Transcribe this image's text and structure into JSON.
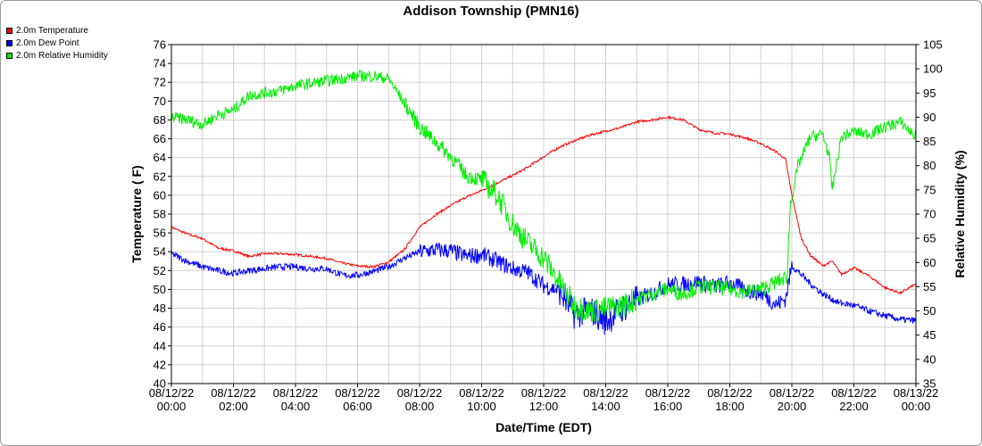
{
  "chart_data": {
    "type": "line",
    "title": "Addison Township (PMN16)",
    "xlabel": "Date/Time (EDT)",
    "ylabel": "Temperature ( F)",
    "y2label": "Relative Humidity (%)",
    "ylim": [
      40,
      76
    ],
    "y2lim": [
      35,
      105
    ],
    "xlim_hours": [
      0,
      24
    ],
    "grid": true,
    "legend_position": "top-left",
    "x_tick_labels": [
      [
        "08/12/22",
        "00:00"
      ],
      [
        "08/12/22",
        "02:00"
      ],
      [
        "08/12/22",
        "04:00"
      ],
      [
        "08/12/22",
        "06:00"
      ],
      [
        "08/12/22",
        "08:00"
      ],
      [
        "08/12/22",
        "10:00"
      ],
      [
        "08/12/22",
        "12:00"
      ],
      [
        "08/12/22",
        "14:00"
      ],
      [
        "08/12/22",
        "16:00"
      ],
      [
        "08/12/22",
        "18:00"
      ],
      [
        "08/12/22",
        "20:00"
      ],
      [
        "08/12/22",
        "22:00"
      ],
      [
        "08/13/22",
        "00:00"
      ]
    ],
    "y_ticks": [
      40,
      42,
      44,
      46,
      48,
      50,
      52,
      54,
      56,
      58,
      60,
      62,
      64,
      66,
      68,
      70,
      72,
      74,
      76
    ],
    "y2_ticks": [
      35,
      40,
      45,
      50,
      55,
      60,
      65,
      70,
      75,
      80,
      85,
      90,
      95,
      100,
      105
    ],
    "series": [
      {
        "name": "2.0m Temperature",
        "color": "#ff0000",
        "axis": "left",
        "x": [
          0,
          0.5,
          1,
          1.5,
          2,
          2.5,
          3,
          3.5,
          4,
          4.5,
          5,
          5.5,
          6,
          6.5,
          7,
          7.5,
          8,
          8.5,
          9,
          9.5,
          10,
          10.5,
          11,
          11.5,
          12,
          12.5,
          13,
          13.5,
          14,
          14.5,
          15,
          15.5,
          16,
          16.5,
          17,
          17.5,
          18,
          18.5,
          19,
          19.5,
          19.8,
          20,
          20.3,
          20.6,
          21,
          21.3,
          21.6,
          22,
          22.5,
          23,
          23.5,
          24
        ],
        "y": [
          56.6,
          55.9,
          55.4,
          54.4,
          54.1,
          53.5,
          53.8,
          53.8,
          53.7,
          53.5,
          53.3,
          52.8,
          52.5,
          52.4,
          52.9,
          54.2,
          56.6,
          57.9,
          58.9,
          59.8,
          60.5,
          61.3,
          62.1,
          63.0,
          64.1,
          65.1,
          65.8,
          66.4,
          66.8,
          67.2,
          67.8,
          68.0,
          68.3,
          68.0,
          67.0,
          66.6,
          66.5,
          66.1,
          65.5,
          64.6,
          63.8,
          60.0,
          55.5,
          53.6,
          52.5,
          53.0,
          51.6,
          52.3,
          51.4,
          50.2,
          49.6,
          50.6
        ]
      },
      {
        "name": "2.0m Dew Point",
        "color": "#0000ff",
        "axis": "left",
        "x": [
          0,
          0.5,
          1,
          1.5,
          2,
          2.5,
          3,
          3.5,
          4,
          4.5,
          5,
          5.5,
          6,
          6.5,
          7,
          7.5,
          8,
          8.5,
          9,
          9.5,
          10,
          10.5,
          11,
          11.5,
          12,
          12.5,
          13,
          13.5,
          14,
          14.5,
          15,
          15.5,
          16,
          16.5,
          17,
          17.5,
          18,
          18.5,
          19,
          19.5,
          19.8,
          20,
          20.3,
          20.6,
          21,
          21.5,
          22,
          22.5,
          23,
          23.5,
          24
        ],
        "y": [
          53.8,
          53.0,
          52.4,
          52.0,
          51.7,
          52.0,
          52.2,
          52.4,
          52.4,
          52.2,
          52.2,
          51.5,
          51.5,
          51.9,
          52.4,
          53.3,
          54.0,
          54.2,
          54.1,
          53.5,
          53.7,
          53.0,
          52.2,
          51.8,
          50.4,
          49.9,
          47.3,
          47.8,
          46.6,
          47.9,
          48.9,
          49.6,
          50.5,
          50.5,
          50.8,
          50.3,
          50.7,
          49.9,
          49.6,
          48.4,
          49.0,
          52.5,
          51.6,
          50.6,
          49.5,
          48.6,
          48.3,
          47.7,
          47.2,
          46.8,
          46.7
        ]
      },
      {
        "name": "2.0m Relative Humidity",
        "color": "#00ee00",
        "axis": "right",
        "x": [
          0,
          0.5,
          1,
          1.5,
          2,
          2.5,
          3,
          3.5,
          4,
          4.5,
          5,
          5.5,
          6,
          6.5,
          7,
          7.5,
          8,
          8.5,
          9,
          9.5,
          10,
          10.5,
          11,
          11.5,
          12,
          12.5,
          13,
          13.5,
          14,
          14.5,
          15,
          15.5,
          16,
          16.5,
          17,
          17.5,
          18,
          18.5,
          19,
          19.5,
          19.85,
          19.95,
          20.2,
          20.6,
          21,
          21.2,
          21.3,
          21.6,
          22,
          22.5,
          23,
          23.5,
          24
        ],
        "y": [
          90.0,
          89.5,
          88.5,
          90.5,
          91.5,
          94.5,
          95.0,
          95.5,
          96.5,
          97.0,
          97.5,
          98.0,
          98.5,
          98.5,
          98.0,
          93.0,
          88.0,
          85.0,
          82.0,
          78.0,
          77.0,
          74.0,
          68.0,
          64.0,
          61.0,
          56.0,
          51.0,
          50.0,
          50.5,
          51.0,
          52.5,
          53.5,
          54.5,
          53.5,
          55.0,
          55.0,
          54.5,
          54.0,
          54.5,
          56.0,
          57.0,
          72.0,
          80.0,
          86.0,
          86.5,
          82.0,
          75.0,
          86.0,
          87.0,
          86.5,
          88.0,
          89.0,
          86.0
        ]
      }
    ]
  }
}
